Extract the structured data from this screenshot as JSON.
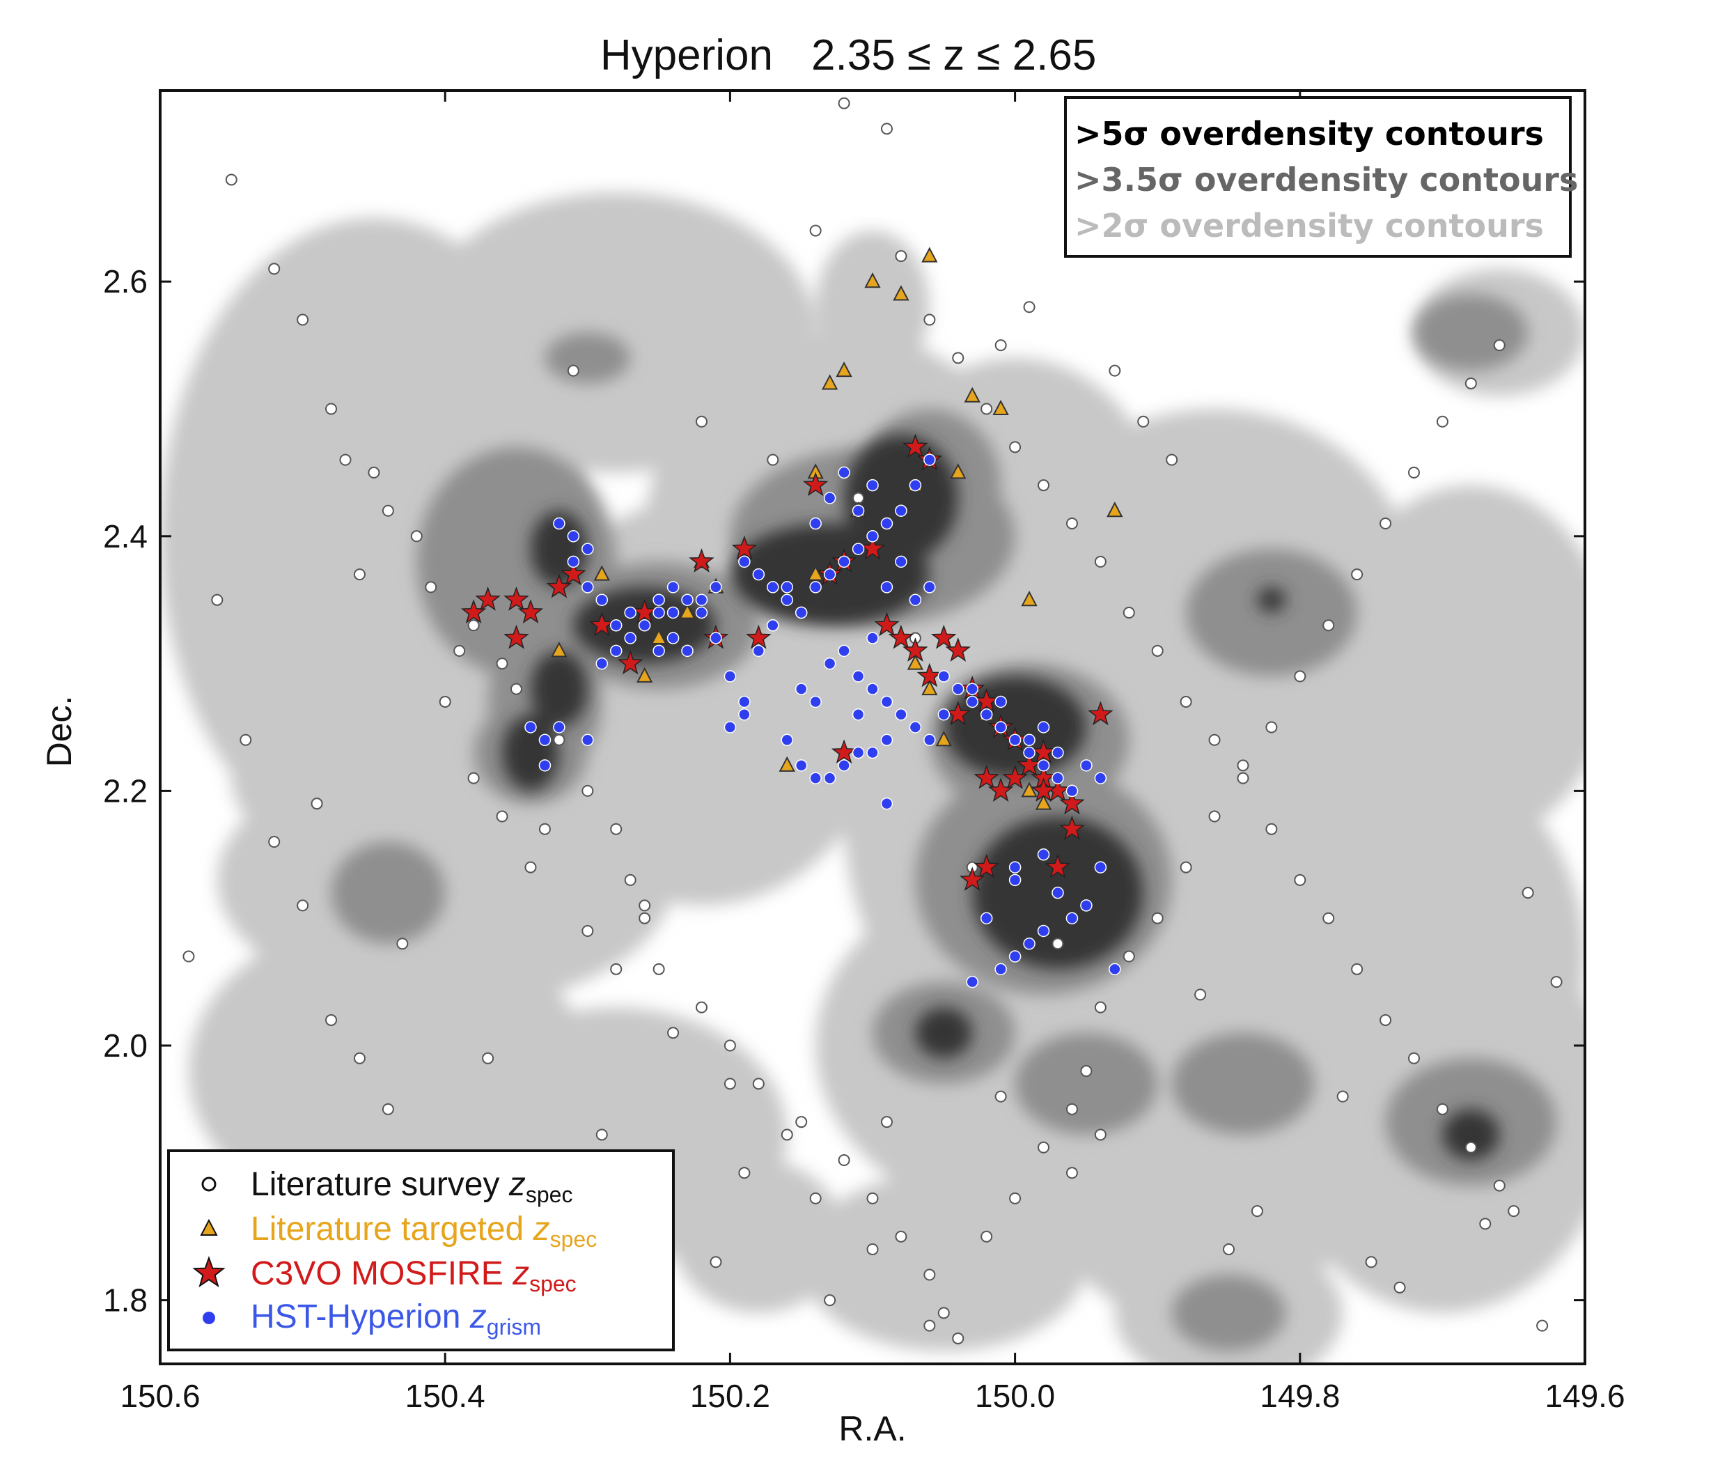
{
  "chart_data": {
    "type": "scatter",
    "title": "Hyperion",
    "title_range": "2.35 ≤ z ≤ 2.65",
    "xlabel": "R.A.",
    "ylabel": "Dec.",
    "xlim": [
      150.6,
      149.6
    ],
    "ylim": [
      1.75,
      2.75
    ],
    "x_inverted": true,
    "xticks": [
      150.6,
      150.4,
      150.2,
      150.0,
      149.8,
      149.6
    ],
    "xtick_labels": [
      "150.6",
      "150.4",
      "150.2",
      "150.0",
      "149.8",
      "149.6"
    ],
    "yticks": [
      1.8,
      2.0,
      2.2,
      2.4,
      2.6
    ],
    "ytick_labels": [
      "1.8",
      "2.0",
      "2.2",
      "2.4",
      "2.6"
    ],
    "grid": false,
    "contour_legend": {
      "placement": "top-right",
      "entries": [
        {
          "label": ">5σ overdensity contours",
          "color": "#000000"
        },
        {
          "label": ">3.5σ overdensity contours",
          "color": "#666666"
        },
        {
          "label": ">2σ overdensity contours",
          "color": "#bbbbbb"
        }
      ]
    },
    "contour_colors": {
      "sigma2": "#c8c8c8",
      "sigma35": "#8f8f8f",
      "sigma5": "#363636"
    },
    "contours": {
      "sigma2": [
        {
          "ra": 150.45,
          "dec": 2.4,
          "rx": 0.15,
          "ry": 0.25
        },
        {
          "ra": 150.28,
          "dec": 2.56,
          "rx": 0.14,
          "ry": 0.11
        },
        {
          "ra": 150.22,
          "dec": 2.27,
          "rx": 0.13,
          "ry": 0.16
        },
        {
          "ra": 150.4,
          "dec": 2.13,
          "rx": 0.16,
          "ry": 0.1
        },
        {
          "ra": 150.44,
          "dec": 1.98,
          "rx": 0.14,
          "ry": 0.12
        },
        {
          "ra": 150.28,
          "dec": 1.93,
          "rx": 0.12,
          "ry": 0.1
        },
        {
          "ra": 150.12,
          "dec": 2.4,
          "rx": 0.14,
          "ry": 0.16
        },
        {
          "ra": 150.1,
          "dec": 2.58,
          "rx": 0.04,
          "ry": 0.06
        },
        {
          "ra": 150.0,
          "dec": 2.42,
          "rx": 0.1,
          "ry": 0.12
        },
        {
          "ra": 149.98,
          "dec": 2.18,
          "rx": 0.14,
          "ry": 0.2
        },
        {
          "ra": 149.98,
          "dec": 2.0,
          "rx": 0.16,
          "ry": 0.14
        },
        {
          "ra": 149.86,
          "dec": 2.36,
          "rx": 0.14,
          "ry": 0.14
        },
        {
          "ra": 149.76,
          "dec": 2.07,
          "rx": 0.16,
          "ry": 0.18
        },
        {
          "ra": 149.68,
          "dec": 2.3,
          "rx": 0.1,
          "ry": 0.14
        },
        {
          "ra": 149.7,
          "dec": 1.95,
          "rx": 0.12,
          "ry": 0.16
        },
        {
          "ra": 149.87,
          "dec": 1.87,
          "rx": 0.1,
          "ry": 0.09
        },
        {
          "ra": 149.85,
          "dec": 1.79,
          "rx": 0.08,
          "ry": 0.06
        },
        {
          "ra": 150.05,
          "dec": 1.83,
          "rx": 0.1,
          "ry": 0.07
        },
        {
          "ra": 150.18,
          "dec": 1.85,
          "rx": 0.06,
          "ry": 0.06
        },
        {
          "ra": 149.66,
          "dec": 2.56,
          "rx": 0.06,
          "ry": 0.05
        },
        {
          "ra": 149.88,
          "dec": 2.22,
          "rx": 0.06,
          "ry": 0.06
        },
        {
          "ra": 150.5,
          "dec": 2.21,
          "rx": 0.05,
          "ry": 0.05
        }
      ],
      "sigma35": [
        {
          "ra": 150.35,
          "dec": 2.38,
          "rx": 0.07,
          "ry": 0.09
        },
        {
          "ra": 150.25,
          "dec": 2.33,
          "rx": 0.07,
          "ry": 0.05
        },
        {
          "ra": 150.33,
          "dec": 2.27,
          "rx": 0.04,
          "ry": 0.06
        },
        {
          "ra": 150.34,
          "dec": 2.23,
          "rx": 0.04,
          "ry": 0.04
        },
        {
          "ra": 150.1,
          "dec": 2.4,
          "rx": 0.1,
          "ry": 0.07
        },
        {
          "ra": 150.06,
          "dec": 2.44,
          "rx": 0.05,
          "ry": 0.06
        },
        {
          "ra": 149.99,
          "dec": 2.24,
          "rx": 0.07,
          "ry": 0.06
        },
        {
          "ra": 149.98,
          "dec": 2.13,
          "rx": 0.09,
          "ry": 0.09
        },
        {
          "ra": 150.05,
          "dec": 2.01,
          "rx": 0.05,
          "ry": 0.04
        },
        {
          "ra": 149.82,
          "dec": 2.34,
          "rx": 0.06,
          "ry": 0.05
        },
        {
          "ra": 149.95,
          "dec": 1.97,
          "rx": 0.05,
          "ry": 0.04
        },
        {
          "ra": 149.84,
          "dec": 1.97,
          "rx": 0.05,
          "ry": 0.04
        },
        {
          "ra": 149.68,
          "dec": 1.94,
          "rx": 0.06,
          "ry": 0.05
        },
        {
          "ra": 149.68,
          "dec": 2.56,
          "rx": 0.04,
          "ry": 0.03
        },
        {
          "ra": 150.44,
          "dec": 2.12,
          "rx": 0.04,
          "ry": 0.04
        },
        {
          "ra": 149.85,
          "dec": 1.79,
          "rx": 0.04,
          "ry": 0.03
        },
        {
          "ra": 150.3,
          "dec": 2.54,
          "rx": 0.03,
          "ry": 0.02
        }
      ],
      "sigma5": [
        {
          "ra": 150.32,
          "dec": 2.39,
          "rx": 0.02,
          "ry": 0.03
        },
        {
          "ra": 150.26,
          "dec": 2.33,
          "rx": 0.05,
          "ry": 0.03
        },
        {
          "ra": 150.34,
          "dec": 2.23,
          "rx": 0.02,
          "ry": 0.03
        },
        {
          "ra": 150.32,
          "dec": 2.28,
          "rx": 0.02,
          "ry": 0.03
        },
        {
          "ra": 150.13,
          "dec": 2.37,
          "rx": 0.07,
          "ry": 0.04
        },
        {
          "ra": 150.08,
          "dec": 2.43,
          "rx": 0.04,
          "ry": 0.05
        },
        {
          "ra": 150.0,
          "dec": 2.25,
          "rx": 0.05,
          "ry": 0.04
        },
        {
          "ra": 149.97,
          "dec": 2.12,
          "rx": 0.06,
          "ry": 0.06
        },
        {
          "ra": 150.05,
          "dec": 2.01,
          "rx": 0.02,
          "ry": 0.02
        },
        {
          "ra": 149.82,
          "dec": 2.35,
          "rx": 0.01,
          "ry": 0.01
        },
        {
          "ra": 149.68,
          "dec": 1.93,
          "rx": 0.02,
          "ry": 0.02
        }
      ]
    },
    "series": [
      {
        "name": "Literature survey",
        "name_subscript": "spec",
        "marker": "circle-open",
        "color": "#ffffff",
        "legend_color": "#111111",
        "x": [
          150.55,
          150.52,
          150.5,
          150.48,
          150.47,
          150.45,
          150.44,
          150.42,
          150.41,
          150.38,
          150.36,
          150.35,
          150.32,
          150.3,
          150.28,
          150.27,
          150.26,
          150.25,
          150.22,
          150.2,
          150.18,
          150.15,
          150.12,
          150.1,
          150.08,
          150.06,
          150.05,
          150.04,
          150.02,
          150.0,
          149.98,
          149.96,
          149.95,
          149.94,
          149.92,
          149.9,
          149.88,
          149.86,
          149.84,
          149.82,
          149.8,
          149.78,
          149.76,
          149.74,
          149.72,
          149.7,
          149.68,
          149.66,
          149.64,
          149.62,
          150.58,
          150.56,
          150.54,
          150.52,
          150.5,
          150.48,
          150.46,
          150.44,
          150.42,
          150.4,
          150.38,
          150.36,
          150.34,
          150.3,
          150.28,
          150.24,
          150.2,
          150.16,
          150.14,
          150.1,
          150.08,
          150.06,
          150.04,
          150.02,
          150.0,
          149.98,
          149.96,
          149.94,
          149.92,
          149.9,
          149.88,
          149.86,
          149.84,
          149.82,
          149.8,
          149.78,
          149.76,
          149.74,
          149.72,
          149.7,
          149.68,
          149.66,
          150.12,
          150.09,
          150.14,
          149.99,
          150.01,
          149.93,
          149.91,
          149.89,
          150.31,
          150.22,
          150.17,
          150.11,
          150.07,
          150.03,
          149.97,
          149.87,
          149.77,
          149.67,
          150.46,
          150.39,
          150.33,
          150.26,
          150.21,
          150.13,
          150.06,
          149.94,
          149.83,
          149.73,
          149.63,
          150.49,
          150.43,
          150.37,
          150.29,
          150.19,
          150.09,
          150.01,
          149.96,
          149.85,
          149.75,
          149.65
        ],
        "y": [
          2.68,
          2.61,
          2.57,
          2.5,
          2.46,
          2.45,
          2.42,
          2.4,
          2.36,
          2.33,
          2.3,
          2.28,
          2.24,
          2.2,
          2.17,
          2.13,
          2.1,
          2.06,
          2.03,
          2.0,
          1.97,
          1.94,
          1.91,
          1.88,
          1.85,
          1.82,
          1.79,
          1.77,
          1.85,
          1.88,
          1.92,
          1.95,
          1.98,
          2.03,
          2.07,
          2.1,
          2.14,
          2.18,
          2.22,
          2.25,
          2.29,
          2.33,
          2.37,
          2.41,
          2.45,
          2.49,
          2.52,
          2.55,
          2.12,
          2.05,
          2.07,
          2.35,
          2.24,
          2.16,
          2.11,
          2.02,
          1.99,
          1.95,
          1.9,
          2.27,
          2.21,
          2.18,
          2.14,
          2.09,
          2.06,
          2.01,
          1.97,
          1.93,
          1.88,
          1.84,
          2.62,
          2.57,
          2.54,
          2.5,
          2.47,
          2.44,
          2.41,
          2.38,
          2.34,
          2.31,
          2.27,
          2.24,
          2.21,
          2.17,
          2.13,
          2.1,
          2.06,
          2.02,
          1.99,
          1.95,
          1.92,
          1.89,
          2.74,
          2.72,
          2.64,
          2.58,
          2.55,
          2.53,
          2.49,
          2.46,
          2.53,
          2.49,
          2.46,
          2.43,
          2.32,
          2.14,
          2.08,
          2.04,
          1.96,
          1.86,
          2.37,
          2.31,
          2.17,
          2.11,
          1.83,
          1.8,
          1.78,
          1.93,
          1.87,
          1.81,
          1.78,
          2.19,
          2.08,
          1.99,
          1.93,
          1.9,
          1.94,
          1.96,
          1.9,
          1.84,
          1.83,
          1.87
        ]
      },
      {
        "name": "Literature targeted",
        "name_subscript": "spec",
        "marker": "triangle",
        "color": "#e6a51c",
        "x": [
          150.06,
          150.1,
          150.12,
          150.08,
          150.13,
          150.14,
          150.03,
          150.01,
          150.04,
          150.07,
          150.11,
          149.99,
          149.93,
          150.29,
          150.22,
          150.21,
          150.26,
          150.32,
          150.25,
          150.14,
          150.07,
          150.06,
          150.05,
          150.02,
          149.99,
          149.98,
          150.16,
          150.23
        ],
        "y": [
          2.62,
          2.6,
          2.53,
          2.59,
          2.52,
          2.45,
          2.51,
          2.5,
          2.45,
          2.44,
          2.42,
          2.35,
          2.42,
          2.37,
          2.38,
          2.36,
          2.29,
          2.31,
          2.32,
          2.37,
          2.3,
          2.28,
          2.24,
          2.26,
          2.2,
          2.19,
          2.22,
          2.34
        ]
      },
      {
        "name": "C3VO MOSFIRE",
        "name_subscript": "spec",
        "marker": "star",
        "color": "#d11a1a",
        "x": [
          150.38,
          150.37,
          150.35,
          150.34,
          150.35,
          150.32,
          150.31,
          150.29,
          150.26,
          150.27,
          150.22,
          150.21,
          150.19,
          150.18,
          150.14,
          150.12,
          150.13,
          150.1,
          150.08,
          150.07,
          150.06,
          150.05,
          150.04,
          150.03,
          150.02,
          150.01,
          150.0,
          149.99,
          149.98,
          149.97,
          149.96,
          149.94,
          150.02,
          150.01,
          149.98,
          150.0,
          150.04,
          150.06,
          150.09,
          150.07,
          149.96,
          149.97,
          150.02,
          150.03,
          149.99,
          149.98,
          150.12
        ],
        "y": [
          2.34,
          2.35,
          2.35,
          2.34,
          2.32,
          2.36,
          2.37,
          2.33,
          2.34,
          2.3,
          2.38,
          2.32,
          2.39,
          2.32,
          2.44,
          2.38,
          2.37,
          2.39,
          2.32,
          2.47,
          2.46,
          2.32,
          2.31,
          2.28,
          2.27,
          2.25,
          2.24,
          2.22,
          2.21,
          2.2,
          2.17,
          2.26,
          2.21,
          2.2,
          2.23,
          2.21,
          2.26,
          2.29,
          2.33,
          2.31,
          2.19,
          2.14,
          2.14,
          2.13,
          2.22,
          2.2,
          2.23
        ]
      },
      {
        "name": "HST-Hyperion",
        "name_subscript": "grism",
        "marker": "circle",
        "color": "#2f3ff0",
        "x": [
          150.32,
          150.31,
          150.3,
          150.31,
          150.3,
          150.29,
          150.28,
          150.27,
          150.25,
          150.24,
          150.23,
          150.22,
          150.24,
          150.25,
          150.23,
          150.21,
          150.34,
          150.33,
          150.33,
          150.32,
          150.3,
          150.19,
          150.18,
          150.17,
          150.16,
          150.15,
          150.14,
          150.13,
          150.12,
          150.11,
          150.1,
          150.09,
          150.08,
          150.07,
          150.06,
          150.08,
          150.09,
          150.07,
          150.06,
          150.11,
          150.1,
          150.12,
          150.13,
          150.14,
          150.16,
          150.15,
          150.17,
          150.05,
          150.04,
          150.03,
          150.02,
          150.01,
          150.0,
          149.99,
          149.98,
          149.97,
          149.96,
          149.95,
          149.97,
          150.01,
          150.03,
          149.98,
          149.99,
          149.96,
          149.94,
          150.0,
          149.97,
          149.95,
          149.96,
          149.98,
          149.99,
          150.0,
          150.01,
          150.03,
          150.02,
          150.0,
          149.98,
          149.94,
          149.93,
          150.13,
          150.11,
          150.1,
          150.09,
          150.08,
          150.07,
          150.09,
          150.11,
          150.12,
          150.13,
          150.14,
          150.15,
          150.12,
          150.1,
          150.06,
          150.05,
          150.19,
          150.2,
          150.15,
          150.14,
          150.1,
          150.11,
          150.09,
          150.16,
          150.18,
          150.17,
          150.24,
          150.26,
          150.27,
          150.28,
          150.29,
          150.21,
          150.22,
          150.25,
          150.2,
          150.19
        ],
        "y": [
          2.41,
          2.4,
          2.39,
          2.38,
          2.36,
          2.35,
          2.33,
          2.34,
          2.35,
          2.36,
          2.35,
          2.34,
          2.32,
          2.31,
          2.31,
          2.32,
          2.25,
          2.24,
          2.22,
          2.25,
          2.24,
          2.38,
          2.37,
          2.36,
          2.35,
          2.34,
          2.36,
          2.37,
          2.38,
          2.39,
          2.4,
          2.41,
          2.42,
          2.44,
          2.46,
          2.38,
          2.36,
          2.35,
          2.36,
          2.42,
          2.44,
          2.45,
          2.43,
          2.41,
          2.36,
          2.34,
          2.33,
          2.29,
          2.28,
          2.27,
          2.26,
          2.25,
          2.24,
          2.23,
          2.22,
          2.21,
          2.2,
          2.22,
          2.23,
          2.27,
          2.28,
          2.25,
          2.24,
          2.2,
          2.21,
          2.13,
          2.12,
          2.11,
          2.1,
          2.09,
          2.08,
          2.07,
          2.06,
          2.05,
          2.1,
          2.14,
          2.15,
          2.14,
          2.06,
          2.3,
          2.29,
          2.28,
          2.27,
          2.26,
          2.25,
          2.24,
          2.23,
          2.22,
          2.21,
          2.27,
          2.28,
          2.31,
          2.32,
          2.24,
          2.26,
          2.26,
          2.25,
          2.22,
          2.21,
          2.23,
          2.26,
          2.19,
          2.24,
          2.31,
          2.33,
          2.34,
          2.33,
          2.32,
          2.31,
          2.3,
          2.36,
          2.35,
          2.34,
          2.29,
          2.27
        ]
      }
    ]
  }
}
